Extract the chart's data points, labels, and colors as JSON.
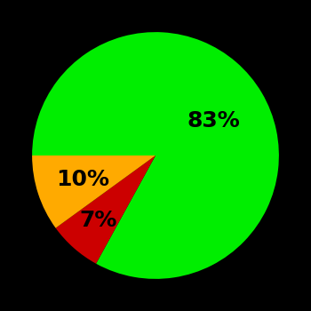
{
  "slices": [
    83,
    7,
    10
  ],
  "colors": [
    "#00ee00",
    "#cc0000",
    "#ffaa00"
  ],
  "labels": [
    "83%",
    "7%",
    "10%"
  ],
  "label_colors": [
    "black",
    "black",
    "black"
  ],
  "background_color": "#000000",
  "startangle": 180,
  "counterclock": false,
  "figsize": [
    3.5,
    3.5
  ],
  "dpi": 100,
  "label_fontsize": 18,
  "label_fontweight": "bold",
  "label_radii": [
    0.55,
    0.7,
    0.62
  ]
}
